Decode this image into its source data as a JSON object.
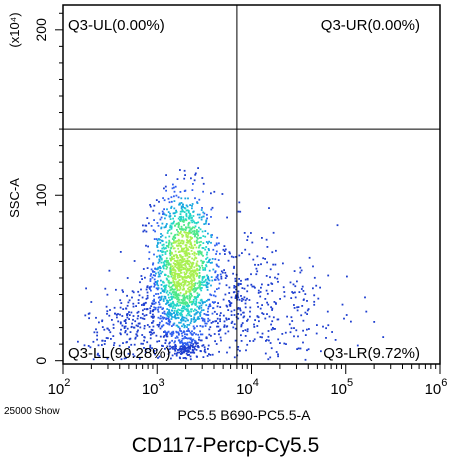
{
  "chart_data": {
    "type": "scatter",
    "plot_kind": "flow-cytometry density dot plot",
    "xlabel": "PC5.5 B690-PC5.5-A",
    "ylabel": "SSC-A",
    "y_multiplier": "(x10⁴)",
    "x_scale": "log",
    "y_scale": "linear",
    "xlim": [
      100,
      1000000
    ],
    "ylim": [
      -2,
      215
    ],
    "x_ticks": [
      {
        "value": 100,
        "base": "10",
        "exp": "2"
      },
      {
        "value": 1000,
        "base": "10",
        "exp": "3"
      },
      {
        "value": 10000,
        "base": "10",
        "exp": "4"
      },
      {
        "value": 100000,
        "base": "10",
        "exp": "5"
      },
      {
        "value": 1000000,
        "base": "10",
        "exp": "6"
      }
    ],
    "y_ticks": [
      {
        "value": 0,
        "label": "0"
      },
      {
        "value": 100,
        "label": "100"
      },
      {
        "value": 200,
        "label": "200"
      }
    ],
    "quadrant_gate": {
      "x": 7000,
      "y": 140
    },
    "quadrants": [
      {
        "id": "UL",
        "label": "Q3-UL(0.00%)",
        "percent": 0.0
      },
      {
        "id": "UR",
        "label": "Q3-UR(0.00%)",
        "percent": 0.0
      },
      {
        "id": "LL",
        "label": "Q3-LL(90.28%)",
        "percent": 90.28
      },
      {
        "id": "LR",
        "label": "Q3-LR(9.72%)",
        "percent": 9.72
      }
    ],
    "event_count_label": "25000 Show",
    "grid": false,
    "density_colors": [
      "#1f3fd0",
      "#2f5ff0",
      "#18a8e0",
      "#22d6c8",
      "#4ee88a",
      "#a8f050"
    ]
  },
  "caption": "CD117-Percp-Cy5.5"
}
